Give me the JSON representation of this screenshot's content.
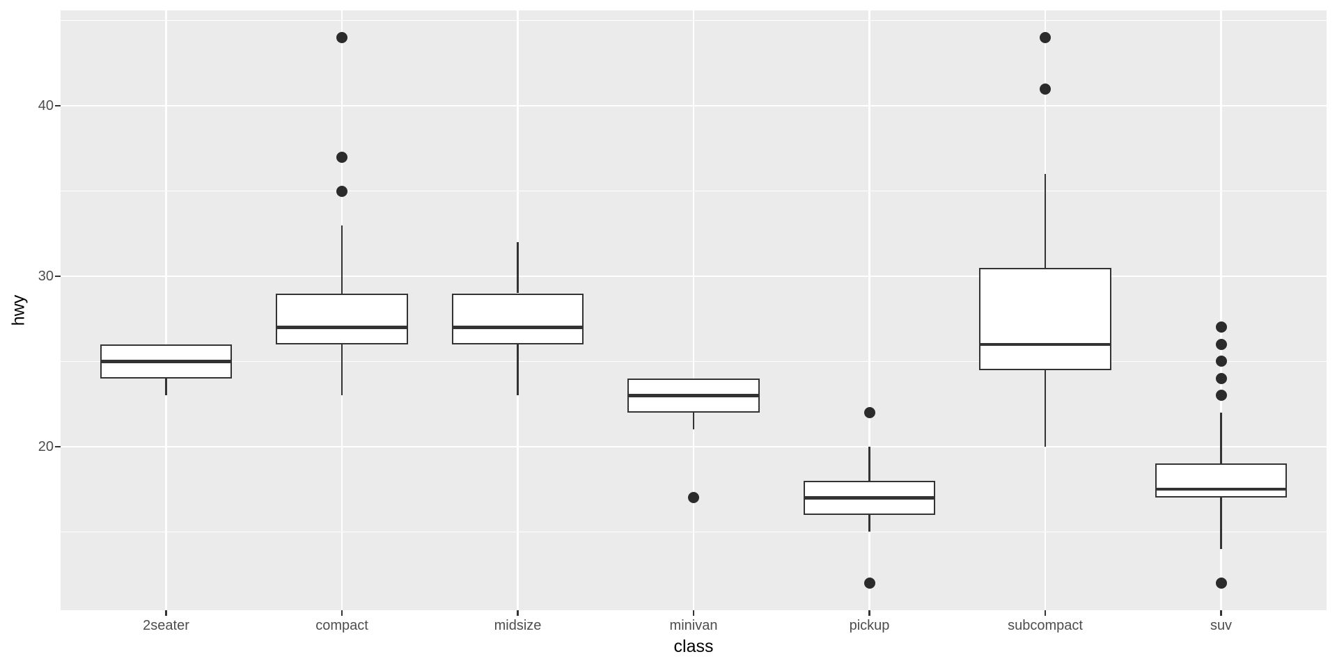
{
  "chart_data": {
    "type": "box",
    "title": "",
    "xlabel": "class",
    "ylabel": "hwy",
    "legend": "none",
    "grid": "white major+minor horizontal gridlines, white major vertical gridlines on grey panel",
    "categories": [
      "2seater",
      "compact",
      "midsize",
      "minivan",
      "pickup",
      "subcompact",
      "suv"
    ],
    "series": [
      {
        "category": "2seater",
        "whisker_low": 23,
        "q1": 24,
        "median": 25,
        "q3": 26,
        "whisker_high": 26,
        "outliers": []
      },
      {
        "category": "compact",
        "whisker_low": 23,
        "q1": 26,
        "median": 27,
        "q3": 29,
        "whisker_high": 33,
        "outliers": [
          35,
          37,
          44
        ]
      },
      {
        "category": "midsize",
        "whisker_low": 23,
        "q1": 26,
        "median": 27,
        "q3": 29,
        "whisker_high": 32,
        "outliers": []
      },
      {
        "category": "minivan",
        "whisker_low": 21,
        "q1": 22,
        "median": 23,
        "q3": 24,
        "whisker_high": 24,
        "outliers": [
          17
        ]
      },
      {
        "category": "pickup",
        "whisker_low": 15,
        "q1": 16,
        "median": 17,
        "q3": 18,
        "whisker_high": 20,
        "outliers": [
          12,
          22
        ]
      },
      {
        "category": "subcompact",
        "whisker_low": 20,
        "q1": 24.5,
        "median": 26,
        "q3": 30.5,
        "whisker_high": 36,
        "outliers": [
          41,
          44
        ]
      },
      {
        "category": "suv",
        "whisker_low": 14,
        "q1": 17,
        "median": 17.5,
        "q3": 19,
        "whisker_high": 22,
        "outliers": [
          12,
          23,
          24,
          25,
          26,
          27
        ]
      }
    ],
    "y_axis": {
      "major_ticks": [
        20,
        30,
        40
      ],
      "minor_ticks": [
        15,
        25,
        35,
        45
      ],
      "range": [
        10.4,
        45.6
      ]
    }
  },
  "colors": {
    "panel_background": "#EBEBEB",
    "gridline": "#FFFFFF",
    "box_stroke": "#333333",
    "box_fill": "#FFFFFF",
    "outlier_point": "#2B2B2B",
    "tick_label": "#4D4D4D",
    "axis_title": "#000000"
  }
}
